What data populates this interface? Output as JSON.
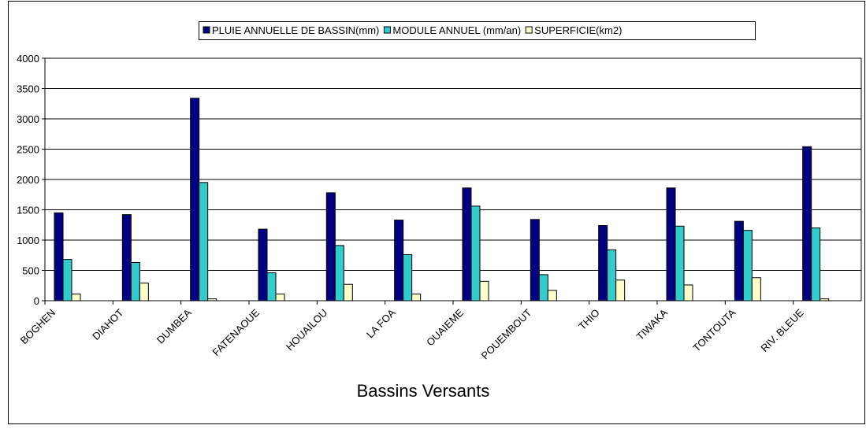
{
  "chart_data": {
    "type": "bar",
    "x_label": "Bassins Versants",
    "categories": [
      "BOGHEN",
      "DIAHOT",
      "DUMBEA",
      "FATENAOUE",
      "HOUAILOU",
      "LA FOA",
      "OUAIEME",
      "POUEMBOUT",
      "THIO",
      "TIWAKA",
      "TONTOUTA",
      "RIV. BLEUE"
    ],
    "series": [
      {
        "name": "PLUIE ANNUELLE DE BASSIN(mm)",
        "color": "#000080",
        "values": [
          1450,
          1420,
          3340,
          1180,
          1780,
          1330,
          1860,
          1340,
          1240,
          1860,
          1310,
          2540
        ]
      },
      {
        "name": "MODULE ANNUEL (mm/an)",
        "color": "#33cccc",
        "values": [
          680,
          630,
          1950,
          460,
          910,
          760,
          1560,
          430,
          840,
          1230,
          1160,
          1200
        ]
      },
      {
        "name": "SUPERFICIE(km2)",
        "color": "#ffffcc",
        "values": [
          110,
          290,
          30,
          110,
          270,
          110,
          320,
          170,
          340,
          260,
          380,
          30
        ]
      }
    ],
    "ylim": [
      0,
      4000
    ],
    "yticks": [
      0,
      500,
      1000,
      1500,
      2000,
      2500,
      3000,
      3500,
      4000
    ],
    "grid": true,
    "legend": "top"
  }
}
